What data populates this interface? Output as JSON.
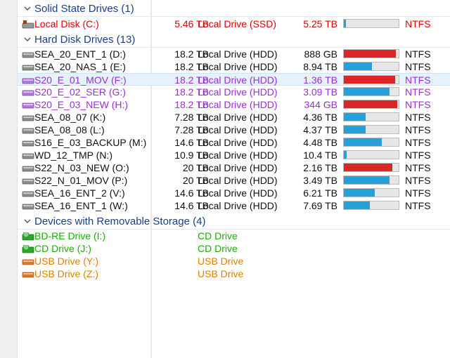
{
  "groups": [
    {
      "label": "Solid State Drives (1)"
    },
    {
      "label": "Hard Disk Drives (13)"
    },
    {
      "label": "Devices with Removable Storage (4)"
    }
  ],
  "ssd": [
    {
      "name": "Local Disk (C:)",
      "total": "5.46 TB",
      "type": "Local Drive (SSD)",
      "free": "5.25 TB",
      "used_fraction": 0.04,
      "bar_color": "#26a0da",
      "fs": "NTFS",
      "text_color": "#e00000",
      "icon": "windows-drive-icon"
    }
  ],
  "hdd": [
    {
      "name": "SEA_20_ENT_1 (D:)",
      "total": "18.2 TB",
      "type": "Local Drive (HDD)",
      "free": "888 GB",
      "used_fraction": 0.95,
      "bar_color": "#da2626",
      "fs": "NTFS",
      "text_color": "#111111"
    },
    {
      "name": "SEA_20_NAS_1 (E:)",
      "total": "18.2 TB",
      "type": "Local Drive (HDD)",
      "free": "8.94 TB",
      "used_fraction": 0.51,
      "bar_color": "#26a0da",
      "fs": "NTFS",
      "text_color": "#111111"
    },
    {
      "name": "S20_E_01_MOV (F:)",
      "total": "18.2 TB",
      "type": "Local Drive (HDD)",
      "free": "1.36 TB",
      "used_fraction": 0.93,
      "bar_color": "#da2626",
      "fs": "NTFS",
      "text_color": "#9a2de0",
      "selected": true
    },
    {
      "name": "S20_E_02_SER (G:)",
      "total": "18.2 TB",
      "type": "Local Drive (HDD)",
      "free": "3.09 TB",
      "used_fraction": 0.83,
      "bar_color": "#26a0da",
      "fs": "NTFS",
      "text_color": "#9a2de0"
    },
    {
      "name": "S20_E_03_NEW (H:)",
      "total": "18.2 TB",
      "type": "Local Drive (HDD)",
      "free": "344 GB",
      "used_fraction": 0.98,
      "bar_color": "#da2626",
      "fs": "NTFS",
      "text_color": "#9a2de0"
    },
    {
      "name": "SEA_08_07 (K:)",
      "total": "7.28 TB",
      "type": "Local Drive (HDD)",
      "free": "4.36 TB",
      "used_fraction": 0.4,
      "bar_color": "#26a0da",
      "fs": "NTFS",
      "text_color": "#111111"
    },
    {
      "name": "SEA_08_08 (L:)",
      "total": "7.28 TB",
      "type": "Local Drive (HDD)",
      "free": "4.37 TB",
      "used_fraction": 0.4,
      "bar_color": "#26a0da",
      "fs": "NTFS",
      "text_color": "#111111"
    },
    {
      "name": "S16_E_03_BACKUP (M:)",
      "total": "14.6 TB",
      "type": "Local Drive (HDD)",
      "free": "4.48 TB",
      "used_fraction": 0.69,
      "bar_color": "#26a0da",
      "fs": "NTFS",
      "text_color": "#111111"
    },
    {
      "name": "WD_12_TMP (N:)",
      "total": "10.9 TB",
      "type": "Local Drive (HDD)",
      "free": "10.4 TB",
      "used_fraction": 0.05,
      "bar_color": "#26a0da",
      "fs": "NTFS",
      "text_color": "#111111"
    },
    {
      "name": "S22_N_03_NEW (O:)",
      "total": "20 TB",
      "type": "Local Drive (HDD)",
      "free": "2.16 TB",
      "used_fraction": 0.89,
      "bar_color": "#da2626",
      "fs": "NTFS",
      "text_color": "#111111"
    },
    {
      "name": "S22_N_01_MOV (P:)",
      "total": "20 TB",
      "type": "Local Drive (HDD)",
      "free": "3.49 TB",
      "used_fraction": 0.83,
      "bar_color": "#26a0da",
      "fs": "NTFS",
      "text_color": "#111111"
    },
    {
      "name": "SEA_16_ENT_2 (V:)",
      "total": "14.6 TB",
      "type": "Local Drive (HDD)",
      "free": "6.21 TB",
      "used_fraction": 0.57,
      "bar_color": "#26a0da",
      "fs": "NTFS",
      "text_color": "#111111"
    },
    {
      "name": "SEA_16_ENT_1 (W:)",
      "total": "14.6 TB",
      "type": "Local Drive (HDD)",
      "free": "7.69 TB",
      "used_fraction": 0.47,
      "bar_color": "#26a0da",
      "fs": "NTFS",
      "text_color": "#111111"
    }
  ],
  "removable": [
    {
      "name": "BD-RE Drive (I:)",
      "type": "CD Drive",
      "text_color": "#17b000",
      "icon": "optical-drive-icon",
      "icon_color": "#2fa32f"
    },
    {
      "name": "CD Drive (J:)",
      "type": "CD Drive",
      "text_color": "#17b000",
      "icon": "optical-drive-icon",
      "icon_color": "#2fa32f"
    },
    {
      "name": "USB Drive (Y:)",
      "type": "USB Drive",
      "text_color": "#e08000",
      "icon": "usb-drive-icon",
      "icon_color": "#d97a2b"
    },
    {
      "name": "USB Drive (Z:)",
      "type": "USB Drive",
      "text_color": "#e08000",
      "icon": "usb-drive-icon",
      "icon_color": "#d97a2b"
    }
  ]
}
